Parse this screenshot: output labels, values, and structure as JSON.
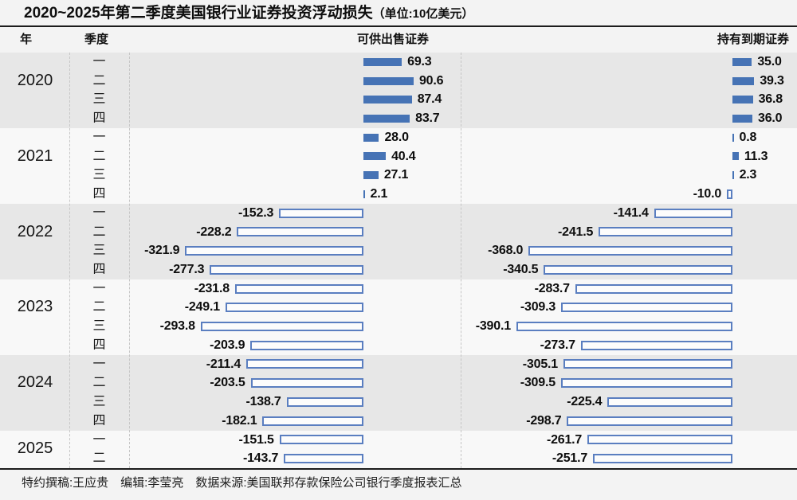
{
  "title": "2020~2025年第二季度美国银行业证券投资浮动损失",
  "title_unit": "（单位:10亿美元）",
  "headers": {
    "year": "年",
    "quarter": "季度",
    "afs": "可供出售证券",
    "htm": "持有到期证券"
  },
  "footer": "特约撰稿:王应贵　编辑:李莹亮　数据来源:美国联邦存款保险公司银行季度报表汇总",
  "colors": {
    "positive_bar": "#4673b5",
    "negative_bar_border": "#5a7ec0",
    "negative_bar_fill": "#fcfcfc",
    "band_dark": "#e7e7e7",
    "band_light": "#f8f8f8",
    "rule": "#1c1c1c"
  },
  "chart_data": {
    "type": "bar",
    "orientation": "horizontal",
    "title": "2020~2025年第二季度美国银行业证券投资浮动损失",
    "unit": "10亿美元",
    "value_format": "one-decimal",
    "positive_style": "solid-fill",
    "negative_style": "hollow-outline",
    "columns": [
      "可供出售证券",
      "持有到期证券"
    ],
    "years": [
      {
        "year": "2020",
        "quarters": [
          "一",
          "二",
          "三",
          "四"
        ],
        "afs": [
          69.3,
          90.6,
          87.4,
          83.7
        ],
        "htm": [
          35.0,
          39.3,
          36.8,
          36.0
        ]
      },
      {
        "year": "2021",
        "quarters": [
          "一",
          "二",
          "三",
          "四"
        ],
        "afs": [
          28.0,
          40.4,
          27.1,
          2.1
        ],
        "htm": [
          0.8,
          11.3,
          2.3,
          -10.0
        ]
      },
      {
        "year": "2022",
        "quarters": [
          "一",
          "二",
          "三",
          "四"
        ],
        "afs": [
          -152.3,
          -228.2,
          -321.9,
          -277.3
        ],
        "htm": [
          -141.4,
          -241.5,
          -368.0,
          -340.5
        ]
      },
      {
        "year": "2023",
        "quarters": [
          "一",
          "二",
          "三",
          "四"
        ],
        "afs": [
          -231.8,
          -249.1,
          -293.8,
          -203.9
        ],
        "htm": [
          -283.7,
          -309.3,
          -390.1,
          -273.7
        ]
      },
      {
        "year": "2024",
        "quarters": [
          "一",
          "二",
          "三",
          "四"
        ],
        "afs": [
          -211.4,
          -203.5,
          -138.7,
          -182.1
        ],
        "htm": [
          -305.1,
          -309.5,
          -225.4,
          -298.7
        ]
      },
      {
        "year": "2025",
        "quarters": [
          "一",
          "二"
        ],
        "afs": [
          -151.5,
          -143.7
        ],
        "htm": [
          -261.7,
          -251.7
        ]
      }
    ]
  }
}
